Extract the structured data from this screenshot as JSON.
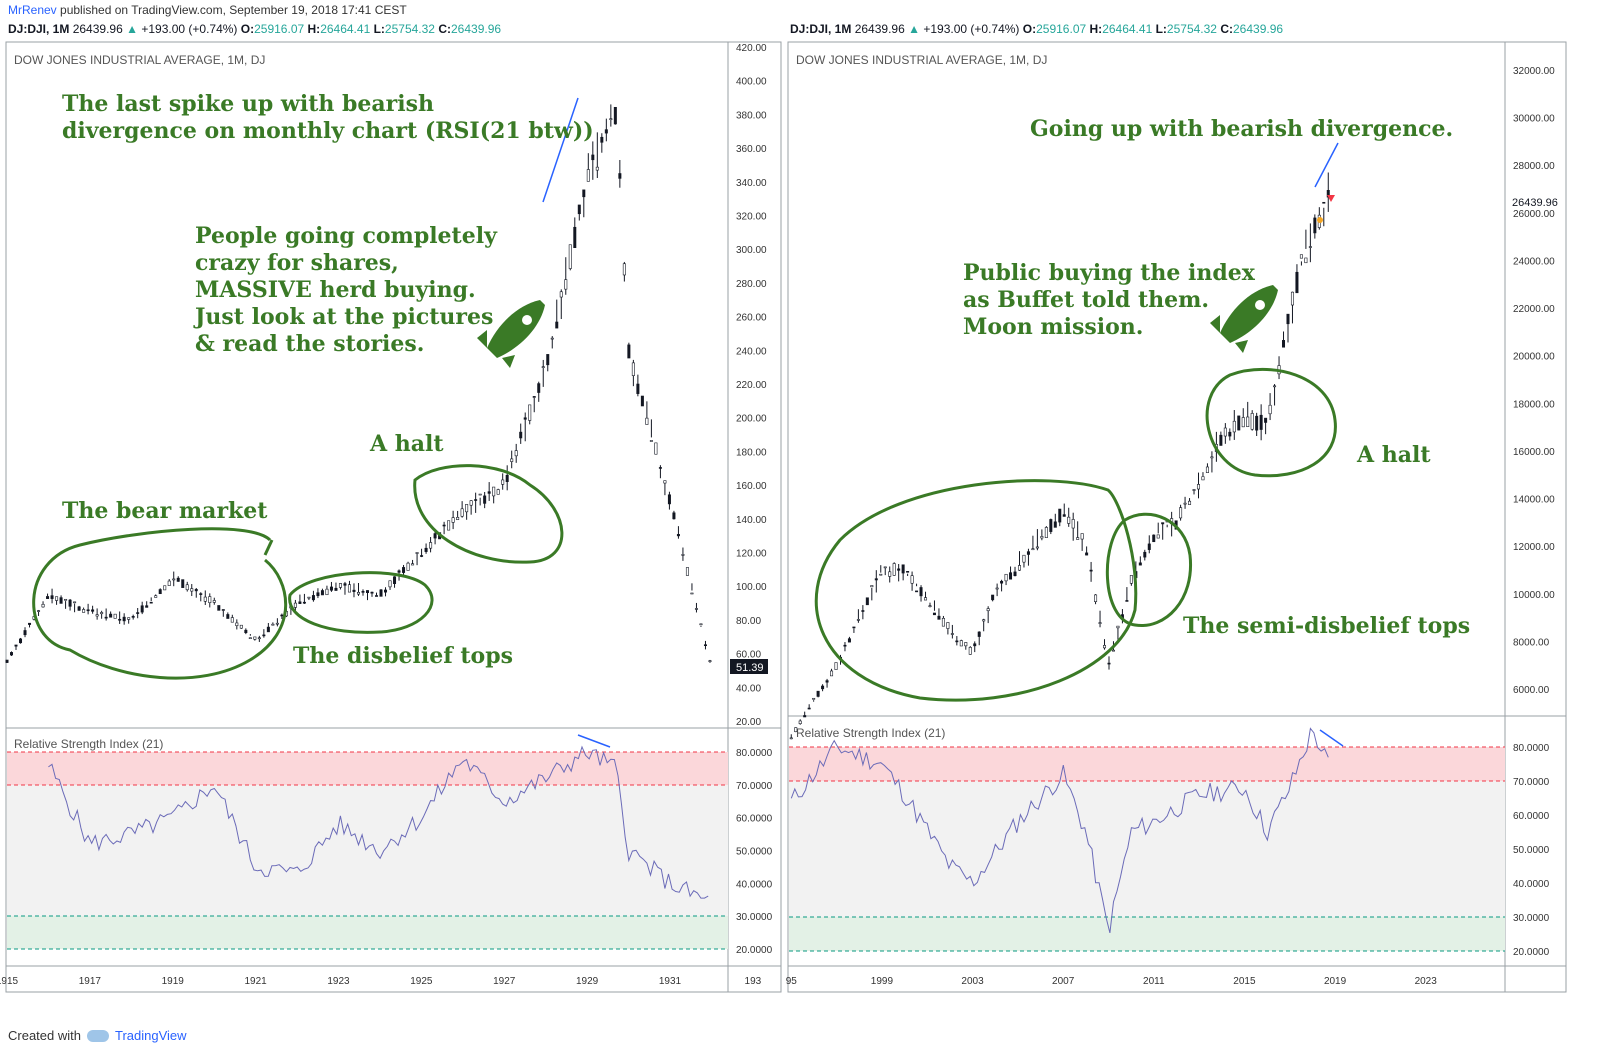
{
  "header": {
    "user": "MrRenev",
    "published": "published on TradingView.com, September 19, 2018 17:41 CEST"
  },
  "left_panel": {
    "ohlc": {
      "symbol": "DJ:DJI, 1M",
      "price": "26439.96",
      "change": "+193.00 (+0.74%)",
      "o_label": "O:",
      "o": "25916.07",
      "h_label": "H:",
      "h": "26464.41",
      "l_label": "L:",
      "l": "25754.32",
      "c_label": "C:",
      "c": "26439.96"
    },
    "title": "DOW JONES INDUSTRIAL AVERAGE, 1M, DJ",
    "rsi_label": "Relative Strength Index (21)",
    "last_price": "51.39",
    "annotations": {
      "spike_1": "The last spike up with bearish",
      "spike_2": "divergence on monthly chart (RSI(21 btw))",
      "crazy_1": "People going completely",
      "crazy_2": "crazy for shares,",
      "crazy_3": "MASSIVE herd buying.",
      "crazy_4": "Just look at the pictures",
      "crazy_5": "& read the stories.",
      "halt": "A halt",
      "bear": "The bear market",
      "disbelief": "The disbelief tops"
    }
  },
  "right_panel": {
    "ohlc": {
      "symbol": "DJ:DJI, 1M",
      "price": "26439.96",
      "change": "+193.00 (+0.74%)",
      "o_label": "O:",
      "o": "25916.07",
      "h_label": "H:",
      "h": "26464.41",
      "l_label": "L:",
      "l": "25754.32",
      "c_label": "C:",
      "c": "26439.96"
    },
    "title": "DOW JONES INDUSTRIAL AVERAGE, 1M, DJ",
    "rsi_label": "Relative Strength Index (21)",
    "last_price": "26439.96",
    "annotations": {
      "going_up": "Going up with bearish divergence.",
      "public_1": "Public buying the index",
      "public_2": "as Buffet told them.",
      "public_3": "Moon mission.",
      "halt": "A halt",
      "semi": "The semi-disbelief tops"
    }
  },
  "footer": {
    "created": "Created with",
    "brand": "TradingView"
  },
  "colors": {
    "annotation": "#3a7a26",
    "divergence": "#2962ff",
    "rsi_line": "#6b6bb8",
    "overbought": "#f23645",
    "oversold": "#089981"
  },
  "chart_data": [
    {
      "type": "line",
      "title": "DOW JONES INDUSTRIAL AVERAGE, 1M, DJ",
      "x": [
        1915,
        1916,
        1917,
        1918,
        1919,
        1920,
        1921,
        1922,
        1923,
        1924,
        1925,
        1926,
        1927,
        1928,
        1929,
        1929.7,
        1930,
        1931,
        1932
      ],
      "series": [
        {
          "values": [
            55,
            95,
            85,
            80,
            105,
            90,
            68,
            90,
            100,
            95,
            120,
            145,
            160,
            230,
            340,
            381,
            240,
            150,
            51.39
          ]
        }
      ],
      "xticks": [
        "1915",
        "1917",
        "1919",
        "1921",
        "1923",
        "1925",
        "1927",
        "1929",
        "1931",
        "193"
      ],
      "yticks": [
        "20.00",
        "40.00",
        "60.00",
        "80.00",
        "100.00",
        "120.00",
        "140.00",
        "160.00",
        "180.00",
        "200.00",
        "220.00",
        "240.00",
        "260.00",
        "280.00",
        "300.00",
        "320.00",
        "340.00",
        "360.00",
        "380.00",
        "400.00",
        "420.00"
      ],
      "ylim": [
        20,
        420
      ],
      "rsi": {
        "x": [
          1916,
          1917,
          1918,
          1919,
          1920,
          1921,
          1922,
          1923,
          1924,
          1925,
          1926,
          1927,
          1928,
          1929,
          1929.7,
          1930,
          1931,
          1932
        ],
        "values": [
          76,
          52,
          55,
          60,
          70,
          45,
          43,
          58,
          50,
          60,
          78,
          65,
          72,
          80,
          75,
          50,
          40,
          34
        ],
        "yticks": [
          "20.0000",
          "30.0000",
          "40.0000",
          "50.0000",
          "60.0000",
          "70.0000",
          "80.0000"
        ],
        "ylim": [
          18,
          86
        ]
      }
    },
    {
      "type": "line",
      "title": "DOW JONES INDUSTRIAL AVERAGE, 1M, DJ",
      "x": [
        1995,
        1997,
        1999,
        2000,
        2002,
        2003,
        2004,
        2007,
        2008,
        2009,
        2010,
        2011,
        2012,
        2014,
        2015,
        2016,
        2017,
        2018,
        2018.7
      ],
      "series": [
        {
          "values": [
            4000,
            7000,
            11000,
            11000,
            8500,
            7500,
            10000,
            13500,
            12000,
            7000,
            10500,
            12500,
            13000,
            16500,
            17500,
            17000,
            22000,
            25500,
            26439.96
          ]
        }
      ],
      "xticks": [
        "95",
        "1999",
        "2003",
        "2007",
        "2011",
        "2015",
        "2019",
        "2023"
      ],
      "yticks": [
        "6000.00",
        "8000.00",
        "10000.00",
        "12000.00",
        "14000.00",
        "16000.00",
        "18000.00",
        "20000.00",
        "22000.00",
        "24000.00",
        "26000.00",
        "28000.00",
        "30000.00",
        "32000.00"
      ],
      "ylim": [
        5000,
        33000
      ],
      "rsi": {
        "x": [
          1995,
          1997,
          1999,
          2000,
          2002,
          2003,
          2005,
          2007,
          2008,
          2009,
          2010,
          2011,
          2013,
          2015,
          2016,
          2017,
          2018,
          2018.7
        ],
        "values": [
          64,
          80,
          75,
          66,
          45,
          40,
          58,
          72,
          55,
          26,
          55,
          58,
          66,
          68,
          55,
          68,
          85,
          75
        ],
        "yticks": [
          "20.0000",
          "30.0000",
          "40.0000",
          "50.0000",
          "60.0000",
          "70.0000",
          "80.0000"
        ],
        "ylim": [
          18,
          86
        ]
      }
    }
  ]
}
